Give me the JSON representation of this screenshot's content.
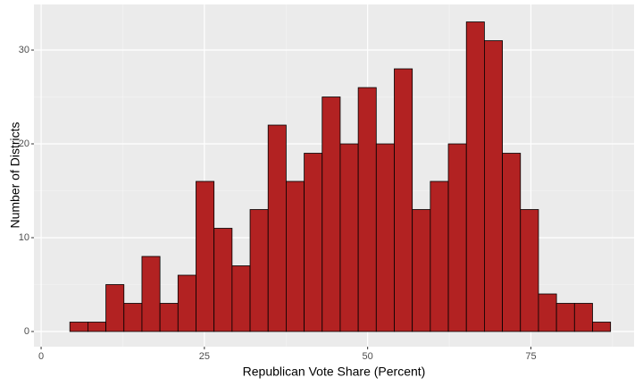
{
  "chart_data": {
    "type": "histogram",
    "x_label": "Republican Vote Share (Percent)",
    "y_label": "Number of Districts",
    "bins": [
      4.4,
      7.16,
      9.92,
      12.68,
      15.44,
      18.2,
      20.96,
      23.72,
      26.48,
      29.24,
      32.0,
      34.76,
      37.52,
      40.28,
      43.04,
      45.8,
      48.56,
      51.32,
      54.08,
      56.84,
      59.6,
      62.36,
      65.12,
      67.88,
      70.64,
      73.4,
      76.16,
      78.92,
      81.68,
      84.44,
      87.2
    ],
    "values": [
      1,
      1,
      5,
      3,
      8,
      3,
      6,
      16,
      11,
      7,
      13,
      22,
      16,
      19,
      25,
      20,
      26,
      20,
      28,
      13,
      16,
      20,
      33,
      31,
      19,
      13,
      4,
      3,
      3,
      1
    ],
    "color": "#b22222",
    "xlim": [
      -1.1,
      90.8
    ],
    "xticks": [
      0,
      25,
      50,
      75
    ],
    "ylim": [
      -1.62,
      34.86
    ],
    "yticks": [
      0,
      10,
      20,
      30
    ],
    "grid": true
  }
}
